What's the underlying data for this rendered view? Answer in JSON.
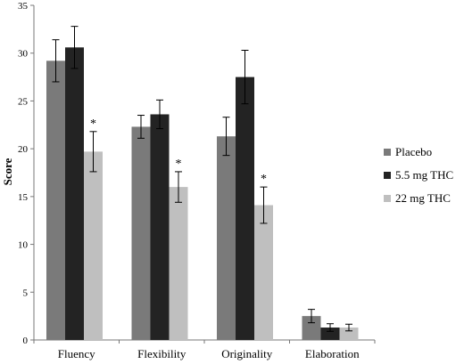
{
  "chart_data": {
    "type": "bar",
    "title": "",
    "xlabel": "",
    "ylabel": "Score",
    "ylim": [
      0,
      35
    ],
    "yticks": [
      0,
      5,
      10,
      15,
      20,
      25,
      30,
      35
    ],
    "grid": false,
    "legend_position": "right",
    "categories": [
      "Fluency",
      "Flexibility",
      "Originality",
      "Elaboration"
    ],
    "series": [
      {
        "name": "Placebo",
        "color": "#7a7a7a",
        "values": [
          29.2,
          22.3,
          21.3,
          2.5
        ],
        "errors": [
          2.2,
          1.2,
          2.0,
          0.7
        ]
      },
      {
        "name": "5.5 mg THC",
        "color": "#232323",
        "values": [
          30.6,
          23.6,
          27.5,
          1.3
        ],
        "errors": [
          2.2,
          1.5,
          2.8,
          0.4
        ]
      },
      {
        "name": "22 mg THC",
        "color": "#bfbfbf",
        "values": [
          19.7,
          16.0,
          14.1,
          1.3
        ],
        "errors": [
          2.1,
          1.6,
          1.9,
          0.35
        ]
      }
    ],
    "annotations": [
      {
        "text": "*",
        "category": "Fluency",
        "series": "22 mg THC"
      },
      {
        "text": "*",
        "category": "Flexibility",
        "series": "22 mg THC"
      },
      {
        "text": "*",
        "category": "Originality",
        "series": "22 mg THC"
      }
    ]
  }
}
